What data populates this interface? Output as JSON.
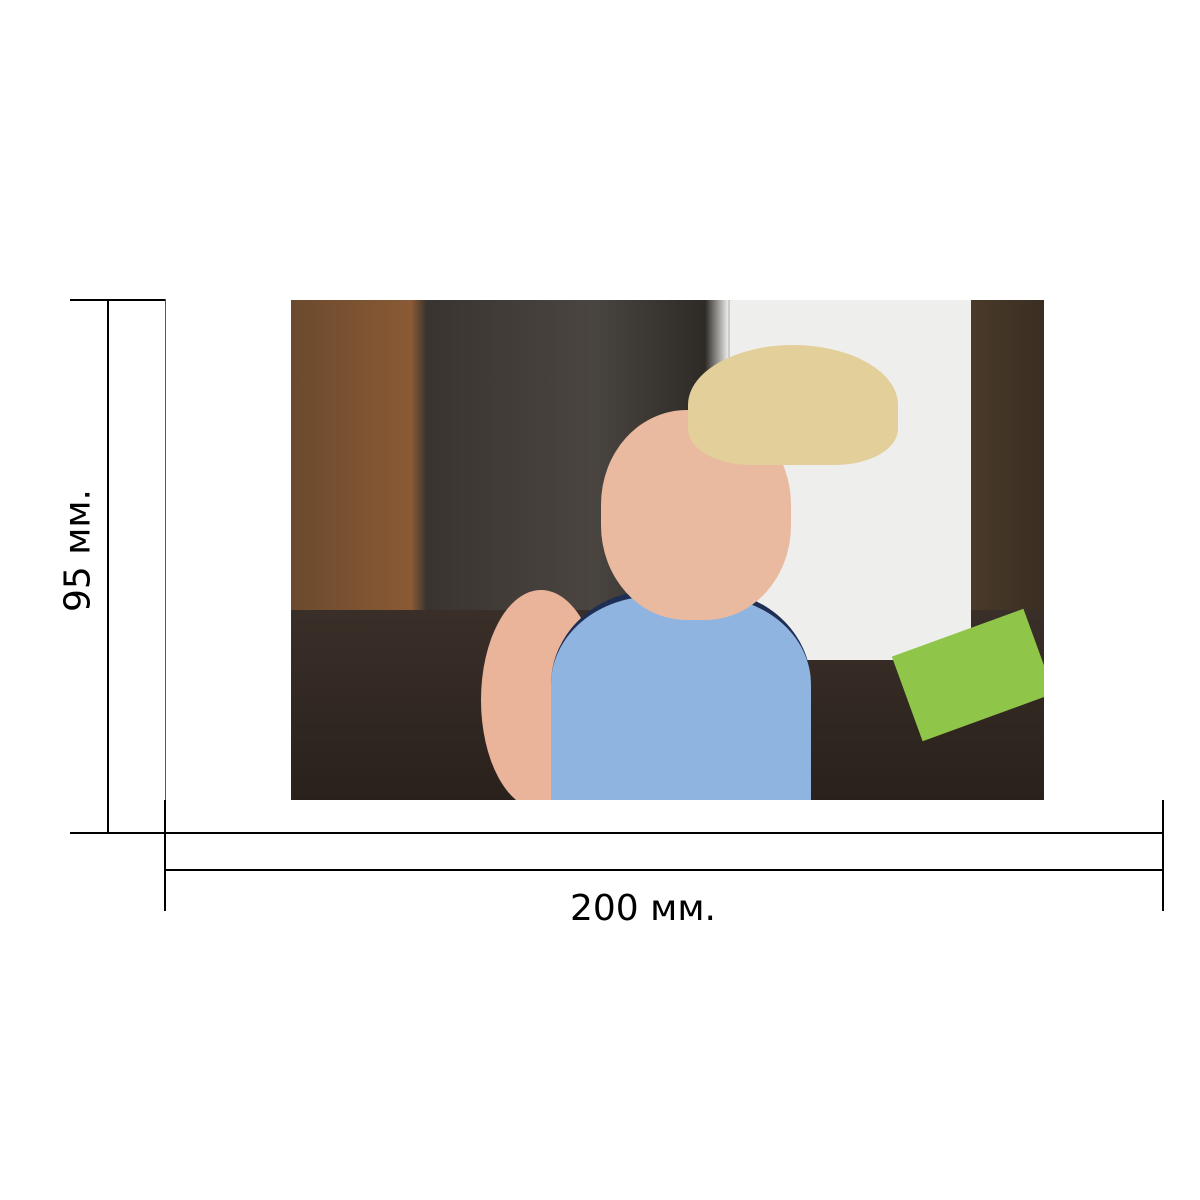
{
  "dimensions": {
    "width_label": "200 мм.",
    "height_label": "95 мм."
  },
  "photo": {
    "subject": "child-photo"
  }
}
